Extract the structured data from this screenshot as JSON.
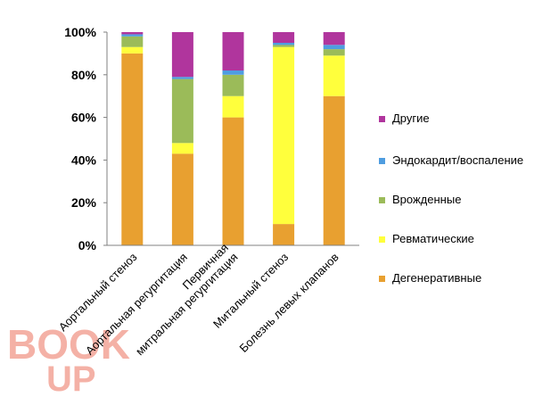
{
  "chart_data": {
    "type": "bar",
    "stacked": true,
    "percent": true,
    "categories": [
      [
        "Аортальный стеноз"
      ],
      [
        "Аортальная регургитация"
      ],
      [
        "Первичная",
        "митральная регургитация"
      ],
      [
        "Митальный стеноз"
      ],
      [
        "Болезнь левых клапанов"
      ]
    ],
    "series": [
      {
        "name": "Дегенеративные",
        "color": "#E8A030",
        "values": [
          90,
          43,
          60,
          10,
          70
        ]
      },
      {
        "name": "Ревматические",
        "color": "#FFFF3C",
        "values": [
          3,
          5,
          10,
          83,
          19
        ]
      },
      {
        "name": "Врожденные",
        "color": "#9BBB59",
        "values": [
          5,
          30,
          10,
          1,
          3
        ]
      },
      {
        "name": "Эндокардит/воспаление",
        "color": "#4F9DE0",
        "values": [
          1,
          1,
          2,
          1,
          2
        ]
      },
      {
        "name": "Другие",
        "color": "#B0359D",
        "values": [
          1,
          21,
          18,
          5,
          6
        ]
      }
    ],
    "yticks": [
      "0%",
      "20%",
      "40%",
      "60%",
      "80%",
      "100%"
    ],
    "ylim": [
      0,
      100
    ],
    "title": "",
    "xlabel": "",
    "ylabel": "",
    "grid": false,
    "legend": "right"
  },
  "logo": {
    "top": "BOOK",
    "bottom": "UP",
    "color": "#E8553C"
  }
}
